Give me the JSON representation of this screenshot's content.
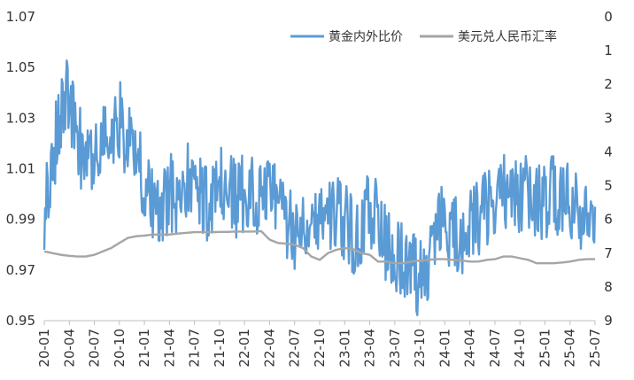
{
  "chart_data": {
    "type": "line",
    "x_tick_labels": [
      "20-01",
      "20-04",
      "20-07",
      "20-10",
      "21-01",
      "21-04",
      "21-07",
      "21-10",
      "22-01",
      "22-04",
      "22-07",
      "22-10",
      "23-01",
      "23-04",
      "23-07",
      "23-10",
      "24-01",
      "24-04",
      "24-07",
      "24-10",
      "25-01",
      "25-04",
      "25-07"
    ],
    "y_left": {
      "ylim": [
        0.95,
        1.07
      ],
      "ticks": [
        0.95,
        0.97,
        0.99,
        1.01,
        1.03,
        1.05,
        1.07
      ],
      "tick_labels": [
        "0.95",
        "0.97",
        "0.99",
        "1.01",
        "1.03",
        "1.05",
        "1.07"
      ]
    },
    "y_right": {
      "ylim": [
        0,
        9
      ],
      "reversed": true,
      "ticks": [
        0,
        1,
        2,
        3,
        4,
        5,
        6,
        7,
        8,
        9
      ],
      "tick_labels": [
        "0",
        "1",
        "2",
        "3",
        "4",
        "5",
        "6",
        "7",
        "8",
        "9"
      ]
    },
    "grid": false,
    "legend_position": "top-right",
    "series": [
      {
        "name": "黄金内外比价",
        "axis": "left",
        "color": "#5B9BD5",
        "monthly_values": [
          0.99,
          1.015,
          1.03,
          1.04,
          1.02,
          1.015,
          1.01,
          1.025,
          1.02,
          1.03,
          1.02,
          1.015,
          1.005,
          0.995,
          0.99,
          1.0,
          1.0,
          1.005,
          1.002,
          1.0,
          0.995,
          1.003,
          1.0,
          0.998,
          1.0,
          1.002,
          0.998,
          1.01,
          0.995,
          0.99,
          0.985,
          0.99,
          0.995,
          0.99,
          0.995,
          0.992,
          0.99,
          0.982,
          0.985,
          0.995,
          0.99,
          0.98,
          0.978,
          0.975,
          0.97,
          0.965,
          0.975,
          0.985,
          0.99,
          0.985,
          0.98,
          0.985,
          0.99,
          0.995,
          0.998,
          1.0,
          1.005,
          1.0,
          1.002,
          0.995,
          0.998,
          1.0,
          0.995,
          0.998,
          0.99,
          0.992,
          0.995
        ]
      },
      {
        "name": "美元兑人民币汇率",
        "axis": "right",
        "color": "#A5A5A5",
        "monthly_values": [
          6.95,
          7.0,
          7.05,
          7.08,
          7.1,
          7.1,
          7.05,
          6.95,
          6.85,
          6.7,
          6.55,
          6.5,
          6.48,
          6.45,
          6.45,
          6.45,
          6.42,
          6.4,
          6.38,
          6.38,
          6.38,
          6.37,
          6.37,
          6.36,
          6.36,
          6.36,
          6.35,
          6.6,
          6.7,
          6.72,
          6.75,
          6.85,
          7.1,
          7.2,
          7.0,
          6.9,
          6.85,
          6.88,
          7.0,
          7.05,
          7.25,
          7.25,
          7.3,
          7.3,
          7.25,
          7.22,
          7.2,
          7.18,
          7.18,
          7.2,
          7.22,
          7.25,
          7.25,
          7.2,
          7.18,
          7.1,
          7.1,
          7.15,
          7.2,
          7.3,
          7.3,
          7.3,
          7.28,
          7.25,
          7.2,
          7.18,
          7.18
        ]
      }
    ]
  }
}
